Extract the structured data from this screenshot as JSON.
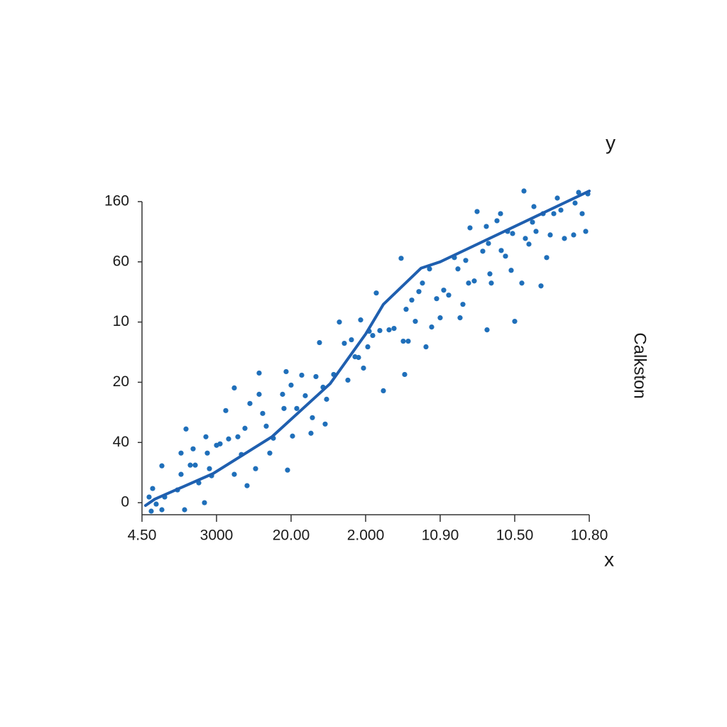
{
  "chart_data": {
    "type": "scatter",
    "xlabel": "x",
    "ylabel": "y",
    "side_label": "Calkston",
    "xlim": [
      0,
      630
    ],
    "ylim": [
      -17,
      425
    ],
    "xticks": [
      {
        "value": 0,
        "label": "4.50"
      },
      {
        "value": 105,
        "label": "3000"
      },
      {
        "value": 210,
        "label": "20.00"
      },
      {
        "value": 315,
        "label": "2.000"
      },
      {
        "value": 420,
        "label": "10.90"
      },
      {
        "value": 525,
        "label": "10.50"
      },
      {
        "value": 630,
        "label": "10.80"
      }
    ],
    "yticks": [
      0,
      {
        "value": 85,
        "label": "40"
      },
      {
        "value": 170,
        "label": "20"
      },
      {
        "value": 255,
        "label": "10"
      },
      {
        "value": 340,
        "label": "60"
      },
      {
        "value": 425,
        "label": "160"
      }
    ],
    "grid": false,
    "series": [
      {
        "type": "scatter",
        "color": "#1f6fba",
        "x": [
          10,
          13,
          15,
          20,
          28,
          28,
          32,
          50,
          55,
          55,
          60,
          62,
          68,
          72,
          75,
          80,
          88,
          90,
          92,
          95,
          98,
          105,
          110,
          118,
          122,
          130,
          130,
          135,
          140,
          145,
          148,
          152,
          160,
          165,
          165,
          170,
          175,
          180,
          185,
          198,
          200,
          203,
          205,
          210,
          212,
          218,
          225,
          230,
          238,
          240,
          245,
          250,
          255,
          258,
          260,
          270,
          278,
          285,
          290,
          295,
          300,
          305,
          308,
          312,
          318,
          320,
          325,
          330,
          335,
          340,
          348,
          355,
          365,
          368,
          370,
          372,
          375,
          380,
          385,
          390,
          395,
          400,
          405,
          408,
          415,
          420,
          425,
          432,
          440,
          445,
          448,
          452,
          456,
          460,
          462,
          468,
          472,
          480,
          485,
          486,
          488,
          490,
          492,
          500,
          505,
          506,
          512,
          515,
          520,
          522,
          525,
          535,
          538,
          540,
          545,
          550,
          552,
          555,
          562,
          565,
          570,
          575,
          580,
          585,
          590,
          595,
          608,
          610,
          615,
          620,
          625,
          628
        ],
        "y": [
          8,
          -12,
          20,
          -2,
          -10,
          52,
          8,
          18,
          40,
          70,
          -10,
          104,
          53,
          76,
          53,
          28,
          0,
          93,
          70,
          48,
          38,
          81,
          83,
          130,
          90,
          162,
          40,
          93,
          68,
          105,
          24,
          140,
          48,
          183,
          153,
          126,
          108,
          70,
          91,
          153,
          133,
          185,
          46,
          166,
          94,
          133,
          180,
          151,
          98,
          120,
          178,
          226,
          163,
          111,
          146,
          181,
          255,
          225,
          173,
          230,
          206,
          205,
          258,
          190,
          220,
          242,
          236,
          296,
          243,
          158,
          244,
          246,
          345,
          228,
          181,
          273,
          228,
          286,
          256,
          298,
          310,
          220,
          330,
          248,
          288,
          261,
          300,
          293,
          346,
          330,
          261,
          280,
          342,
          310,
          388,
          313,
          411,
          355,
          390,
          244,
          366,
          323,
          310,
          398,
          408,
          356,
          348,
          383,
          328,
          380,
          256,
          310,
          440,
          373,
          365,
          396,
          418,
          383,
          306,
          408,
          346,
          378,
          408,
          430,
          413,
          373,
          378,
          423,
          438,
          408,
          383,
          436
        ]
      },
      {
        "type": "line",
        "color": "#1f5faf",
        "x": [
          5,
          18,
          100,
          183,
          265,
          315,
          340,
          393,
          420,
          525,
          630
        ],
        "y": [
          -4,
          5,
          41,
          93,
          168,
          238,
          280,
          331,
          340,
          390,
          440
        ]
      }
    ]
  }
}
